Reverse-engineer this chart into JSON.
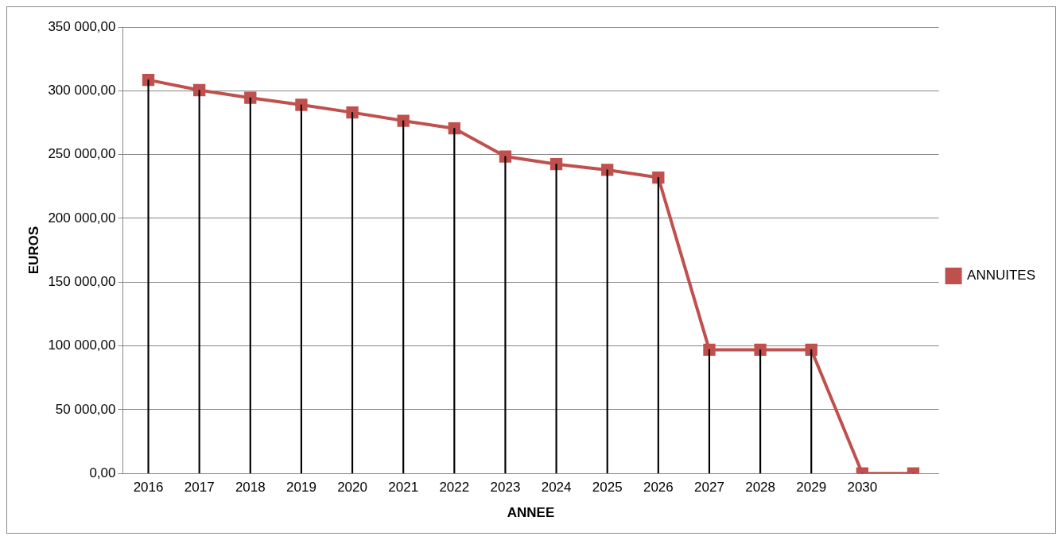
{
  "chart_data": {
    "type": "line",
    "xlabel": "ANNEE",
    "ylabel": "EUROS",
    "categories": [
      "2016",
      "2017",
      "2018",
      "2019",
      "2020",
      "2021",
      "2022",
      "2023",
      "2024",
      "2025",
      "2026",
      "2027",
      "2028",
      "2029",
      "2030",
      null
    ],
    "series": [
      {
        "type": "bar",
        "color": "#000000",
        "values": [
          308500,
          300500,
          294500,
          289000,
          283000,
          276500,
          270500,
          248500,
          242500,
          238000,
          232000,
          97000,
          97000,
          97000,
          0,
          0
        ]
      },
      {
        "name": "ANNUITES",
        "color": "#c0504d",
        "values": [
          308500,
          300500,
          294500,
          289000,
          283000,
          276500,
          270500,
          248500,
          242500,
          238000,
          232000,
          97000,
          97000,
          97000,
          0,
          0
        ]
      }
    ],
    "ylim": [
      0,
      350000
    ],
    "yticks": [
      {
        "value": 0,
        "label": "0,00"
      },
      {
        "value": 50000,
        "label": "50 000,00"
      },
      {
        "value": 100000,
        "label": "100 000,00"
      },
      {
        "value": 150000,
        "label": "150 000,00"
      },
      {
        "value": 200000,
        "label": "200 000,00"
      },
      {
        "value": 250000,
        "label": "250 000,00"
      },
      {
        "value": 300000,
        "label": "300 000,00"
      },
      {
        "value": 350000,
        "label": "350 000,00"
      }
    ],
    "grid": "y",
    "legend": "right",
    "marker": "square",
    "line_style": "solid"
  }
}
